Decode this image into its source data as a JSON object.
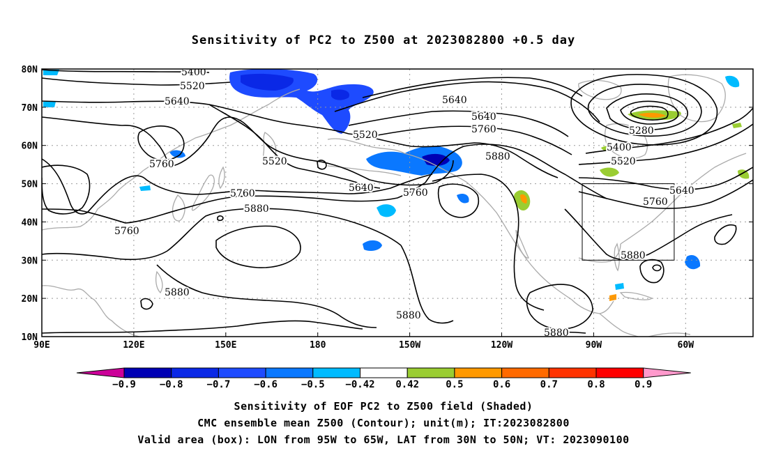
{
  "title": "Sensitivity of PC2 to Z500 at 2023082800 +0.5 day",
  "map": {
    "lat_labels": [
      "80N",
      "70N",
      "60N",
      "50N",
      "40N",
      "30N",
      "20N",
      "10N"
    ],
    "lon_labels": [
      "90E",
      "120E",
      "150E",
      "180",
      "150W",
      "120W",
      "90W",
      "60W"
    ],
    "lat_range": [
      10,
      80
    ],
    "lon_range_east": [
      90,
      322
    ],
    "validation_box": {
      "lon_west": -95,
      "lon_east": -65,
      "lat_south": 30,
      "lat_north": 50
    }
  },
  "contour_labels": [
    "5400",
    "5520",
    "5640",
    "5520",
    "5640",
    "5760",
    "5520",
    "5280",
    "5400",
    "5520",
    "5640",
    "5760",
    "5760",
    "5640",
    "5880",
    "5760",
    "5880",
    "5760",
    "5880",
    "5880",
    "5880",
    "5880",
    "5640",
    "5760"
  ],
  "colorbar": {
    "labels": [
      "-0.9",
      "-0.8",
      "-0.7",
      "-0.6",
      "-0.5",
      "-0.42",
      "0.42",
      "0.5",
      "0.6",
      "0.7",
      "0.8",
      "0.9"
    ],
    "colors": [
      "#0000b4",
      "#0a28e6",
      "#1e4bff",
      "#0a78ff",
      "#00bbff",
      "#ffffff",
      "#9acd32",
      "#ff9900",
      "#ff6a00",
      "#ff3300",
      "#ff0000"
    ],
    "low_end_color": "#cc0099",
    "high_end_color": "#ff99cc"
  },
  "captions": {
    "line1": "Sensitivity of EOF PC2 to Z500 field (Shaded)",
    "line2": "CMC ensemble mean Z500 (Contour); unit(m); IT:2023082800",
    "line3": "Valid area (box): LON from 95W to 65W, LAT from 30N to 50N; VT: 2023090100"
  }
}
